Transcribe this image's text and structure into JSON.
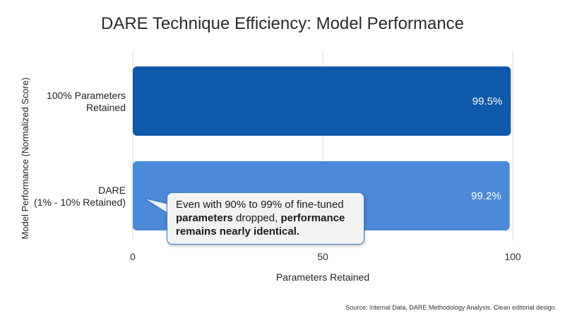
{
  "colors": {
    "bar_1": "#0d58a8",
    "bar_2": "#4a8ad6",
    "grid": "#d9d9d9",
    "callout_border": "#3f7fd0"
  },
  "chart_data": {
    "type": "bar",
    "orientation": "horizontal",
    "title": "DARE Technique Efficiency: Model Performance",
    "xlabel": "Parameters Retained",
    "ylabel": "Model Performance (Normalized Score)",
    "xlim": [
      0,
      100
    ],
    "xticks": [
      "0",
      "50",
      "100"
    ],
    "grid": true,
    "categories": [
      [
        "100% Parameters",
        "Retained"
      ],
      [
        "DARE",
        "(1% - 10% Retained)"
      ]
    ],
    "values": [
      99.5,
      99.2
    ],
    "data_labels": [
      "99.5%",
      "99.2%"
    ]
  },
  "callout": {
    "line1": "Even with 90% to 99% of fine-tuned",
    "line2_bold": "parameters",
    "line2_rest": " dropped, ",
    "line2_bold2": "performance",
    "line3_bold": "remains nearly identical."
  },
  "source": "Source: Internal Data, DARE Methodology Analysis. Clean editorial design."
}
